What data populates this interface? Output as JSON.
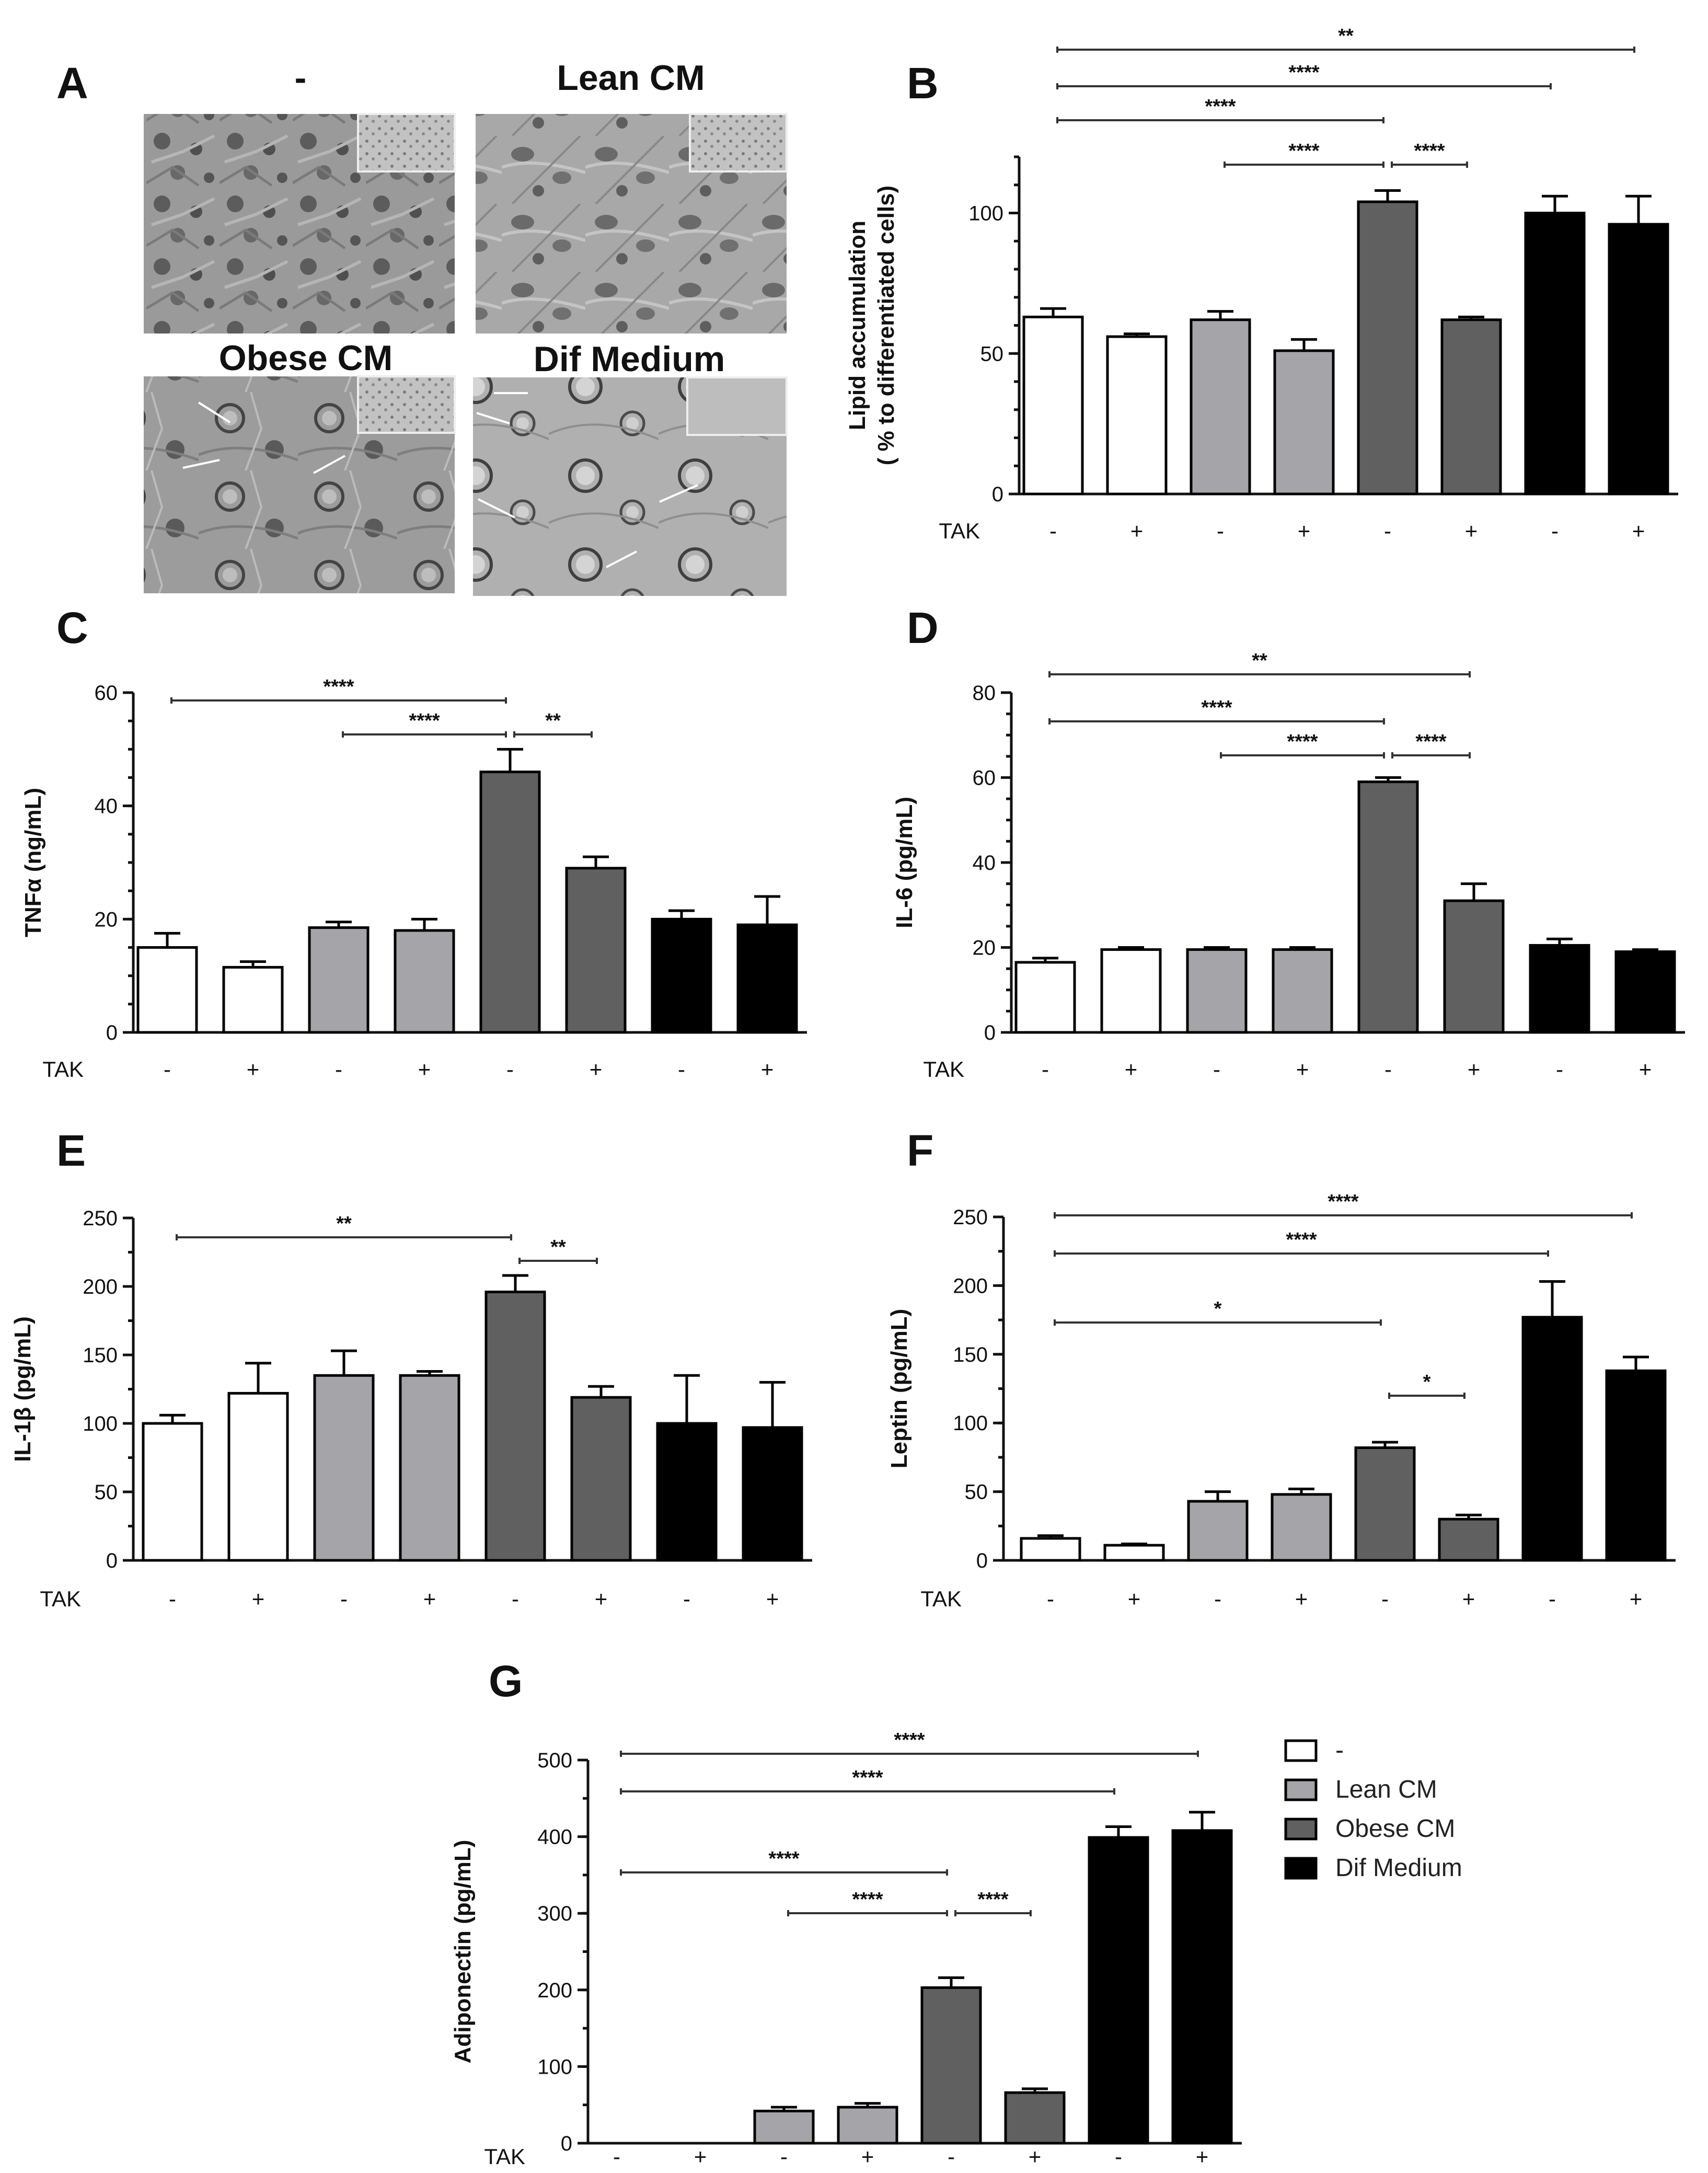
{
  "panel_a": {
    "label": "A",
    "titles": [
      "-",
      "Lean CM",
      "Obese CM",
      "Dif Medium"
    ]
  },
  "colors": {
    "none": "#ffffff",
    "lean": "#a5a5a9",
    "obese": "#606060",
    "dif": "#000000"
  },
  "chart_data": [
    {
      "id": "B",
      "label": "B",
      "type": "bar",
      "ylabel": "Lipid accumulation",
      "ylabel2": "( % to differentiated cells)",
      "yticks": [
        0,
        50,
        100
      ],
      "ylim": [
        0,
        120
      ],
      "minor": 10,
      "tak_label": "TAK",
      "tak": [
        "-",
        "+",
        "-",
        "+",
        "-",
        "+",
        "-",
        "+"
      ],
      "groups": [
        "none",
        "none",
        "lean",
        "lean",
        "obese",
        "obese",
        "dif",
        "dif"
      ],
      "values": [
        63,
        56,
        62,
        51,
        104,
        62,
        100,
        96
      ],
      "errors": [
        3,
        1,
        3,
        4,
        4,
        1,
        6,
        10
      ],
      "sig": [
        {
          "from": 0,
          "to": 7,
          "label": "**",
          "level": 0
        },
        {
          "from": 0,
          "to": 6,
          "label": "****",
          "level": 1
        },
        {
          "from": 0,
          "to": 4,
          "label": "****",
          "level": 2
        },
        {
          "from": 2,
          "to": 4,
          "label": "****",
          "level": 3
        },
        {
          "from": 4,
          "to": 5,
          "label": "****",
          "level": 3
        }
      ]
    },
    {
      "id": "C",
      "label": "C",
      "type": "bar",
      "ylabel": "TNFα (ng/mL)",
      "yticks": [
        0,
        20,
        40,
        60
      ],
      "ylim": [
        0,
        60
      ],
      "minor": 5,
      "tak_label": "TAK",
      "tak": [
        "-",
        "+",
        "-",
        "+",
        "-",
        "+",
        "-",
        "+"
      ],
      "groups": [
        "none",
        "none",
        "lean",
        "lean",
        "obese",
        "obese",
        "dif",
        "dif"
      ],
      "values": [
        15,
        11.5,
        18.5,
        18,
        46,
        29,
        20,
        19
      ],
      "errors": [
        2.5,
        1,
        1,
        2,
        4,
        2,
        1.5,
        5
      ],
      "sig": [
        {
          "from": 0,
          "to": 4,
          "label": "****",
          "level": 0
        },
        {
          "from": 2,
          "to": 4,
          "label": "****",
          "level": 1
        },
        {
          "from": 4,
          "to": 5,
          "label": "**",
          "level": 1
        }
      ]
    },
    {
      "id": "D",
      "label": "D",
      "type": "bar",
      "ylabel": "IL-6 (pg/mL)",
      "yticks": [
        0,
        20,
        40,
        60,
        80
      ],
      "ylim": [
        0,
        80
      ],
      "minor": 5,
      "tak_label": "TAK",
      "tak": [
        "-",
        "+",
        "-",
        "+",
        "-",
        "+",
        "-",
        "+"
      ],
      "groups": [
        "none",
        "none",
        "lean",
        "lean",
        "obese",
        "obese",
        "dif",
        "dif"
      ],
      "values": [
        16.5,
        19.5,
        19.5,
        19.5,
        59,
        31,
        20.5,
        19
      ],
      "errors": [
        1,
        0.5,
        0.5,
        0.5,
        1,
        4,
        1.5,
        0.5
      ],
      "sig": [
        {
          "from": 0,
          "to": 5,
          "label": "**",
          "level": 0
        },
        {
          "from": 0,
          "to": 4,
          "label": "****",
          "level": 1
        },
        {
          "from": 2,
          "to": 4,
          "label": "****",
          "level": 2
        },
        {
          "from": 4,
          "to": 5,
          "label": "****",
          "level": 2
        }
      ]
    },
    {
      "id": "E",
      "label": "E",
      "type": "bar",
      "ylabel": "IL-1β (pg/mL)",
      "yticks": [
        0,
        50,
        100,
        150,
        200,
        250
      ],
      "ylim": [
        0,
        250
      ],
      "minor": 25,
      "tak_label": "TAK",
      "tak": [
        "-",
        "+",
        "-",
        "+",
        "-",
        "+",
        "-",
        "+"
      ],
      "groups": [
        "none",
        "none",
        "lean",
        "lean",
        "obese",
        "obese",
        "dif",
        "dif"
      ],
      "values": [
        100,
        122,
        135,
        135,
        196,
        119,
        100,
        97
      ],
      "errors": [
        6,
        22,
        18,
        3,
        12,
        8,
        35,
        33
      ],
      "sig": [
        {
          "from": 0,
          "to": 4,
          "label": "**",
          "level": 0
        },
        {
          "from": 4,
          "to": 5,
          "label": "**",
          "level": 1
        }
      ]
    },
    {
      "id": "F",
      "label": "F",
      "type": "bar",
      "ylabel": "Leptin (pg/mL)",
      "yticks": [
        0,
        50,
        100,
        150,
        200,
        250
      ],
      "ylim": [
        0,
        250
      ],
      "minor": 25,
      "tak_label": "TAK",
      "tak": [
        "-",
        "+",
        "-",
        "+",
        "-",
        "+",
        "-",
        "+"
      ],
      "groups": [
        "none",
        "none",
        "lean",
        "lean",
        "obese",
        "obese",
        "dif",
        "dif"
      ],
      "values": [
        16,
        11,
        43,
        48,
        82,
        30,
        177,
        138
      ],
      "errors": [
        2,
        1,
        7,
        4,
        4,
        3,
        26,
        10
      ],
      "sig": [
        {
          "from": 0,
          "to": 7,
          "label": "****",
          "level": 0
        },
        {
          "from": 0,
          "to": 6,
          "label": "****",
          "level": 1
        },
        {
          "from": 0,
          "to": 4,
          "label": "*",
          "level": 2
        },
        {
          "from": 4,
          "to": 5,
          "label": "*",
          "level": 3
        }
      ]
    },
    {
      "id": "G",
      "label": "G",
      "type": "bar",
      "ylabel": "Adiponectin (pg/mL)",
      "yticks": [
        0,
        100,
        200,
        300,
        400,
        500
      ],
      "ylim": [
        0,
        500
      ],
      "minor": 50,
      "tak_label": "TAK",
      "tak": [
        "-",
        "+",
        "-",
        "+",
        "-",
        "+",
        "-",
        "+"
      ],
      "groups": [
        "none",
        "none",
        "lean",
        "lean",
        "obese",
        "obese",
        "dif",
        "dif"
      ],
      "values": [
        0,
        0,
        42,
        47,
        203,
        66,
        399,
        408
      ],
      "errors": [
        0,
        0,
        5,
        5,
        13,
        5,
        14,
        24
      ],
      "sig": [
        {
          "from": 0,
          "to": 7,
          "label": "****",
          "level": 0
        },
        {
          "from": 0,
          "to": 6,
          "label": "****",
          "level": 1
        },
        {
          "from": 0,
          "to": 4,
          "label": "****",
          "level": 2
        },
        {
          "from": 2,
          "to": 4,
          "label": "****",
          "level": 3
        },
        {
          "from": 4,
          "to": 5,
          "label": "****",
          "level": 3
        }
      ]
    }
  ],
  "legend": [
    {
      "label": "-",
      "group": "none"
    },
    {
      "label": "Lean CM",
      "group": "lean"
    },
    {
      "label": "Obese CM",
      "group": "obese"
    },
    {
      "label": "Dif Medium",
      "group": "dif"
    }
  ]
}
